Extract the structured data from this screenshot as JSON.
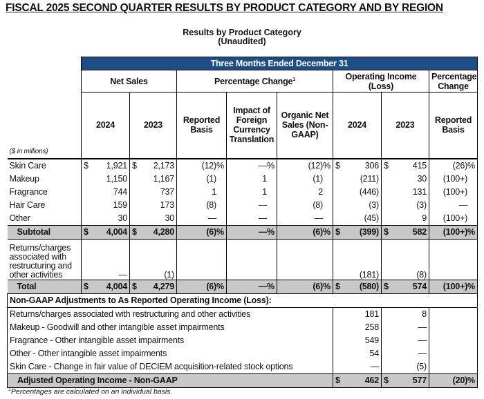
{
  "title": "FISCAL 2025 SECOND QUARTER RESULTS BY PRODUCT CATEGORY AND BY REGION",
  "subtitle": "Results by Product Category",
  "subtitle2": "(Unaudited)",
  "header": {
    "period": "Three Months Ended December 31",
    "net_sales": "Net Sales",
    "pct_change": "Percentage Change",
    "pct_change_sup": "1",
    "operating_income": "Operating Income (Loss)",
    "pct_change2": "Percentage Change",
    "cols": [
      "2024",
      "2023",
      "Reported Basis",
      "Impact of Foreign Currency Translation",
      "Organic Net Sales (Non-GAAP)",
      "2024",
      "2023",
      "Reported Basis"
    ],
    "units": "($ in millions)"
  },
  "symbols": {
    "dollar": "$",
    "percent": "%"
  },
  "colors": {
    "header_blue": "#1c4f86",
    "subtotal_gray": "#c8c8c8"
  },
  "rows": [
    {
      "label": "Skin Care",
      "type": "data",
      "dollar": true,
      "pct": [
        2,
        3,
        4,
        7
      ],
      "values": [
        "1,921",
        "2,173",
        "(12)",
        "—",
        "(12)",
        "306",
        "415",
        "(26)"
      ]
    },
    {
      "label": "Makeup",
      "type": "data",
      "dollar": false,
      "pct": [],
      "values": [
        "1,150",
        "1,167",
        "(1)",
        "1",
        "(1)",
        "(211)",
        "30",
        "(100+)"
      ]
    },
    {
      "label": "Fragrance",
      "type": "data",
      "dollar": false,
      "pct": [],
      "values": [
        "744",
        "737",
        "1",
        "1",
        "2",
        "(446)",
        "131",
        "(100+)"
      ]
    },
    {
      "label": "Hair Care",
      "type": "data",
      "dollar": false,
      "pct": [],
      "values": [
        "159",
        "173",
        "(8)",
        "—",
        "(8)",
        "(3)",
        "(3)",
        "—"
      ]
    },
    {
      "label": "Other",
      "type": "data",
      "dollar": false,
      "pct": [],
      "values": [
        "30",
        "30",
        "—",
        "—",
        "—",
        "(45)",
        "9",
        "(100+)"
      ]
    },
    {
      "label": "Subtotal",
      "type": "gray",
      "dollar": true,
      "pct": [
        2,
        3,
        4,
        7
      ],
      "values": [
        "4,004",
        "4,280",
        "(6)",
        "—",
        "(6)",
        "(399)",
        "582",
        "(100+)"
      ]
    },
    {
      "label": "Returns/charges associated with restructuring and other activities",
      "type": "multi",
      "dollar": false,
      "pct": [],
      "values": [
        "—",
        "(1)",
        "",
        "",
        "",
        "(181)",
        "(8)",
        ""
      ]
    },
    {
      "label": "Total",
      "type": "gray",
      "dollar": true,
      "pct": [
        2,
        3,
        4,
        7
      ],
      "values": [
        "4,004",
        "4,279",
        "(6)",
        "—",
        "(6)",
        "(580)",
        "574",
        "(100+)"
      ]
    }
  ],
  "non_gaap": {
    "heading": "Non-GAAP Adjustments to As Reported Operating Income (Loss):",
    "rows": [
      {
        "label": "Returns/charges associated with restructuring and other activities",
        "values": [
          "181",
          "8"
        ]
      },
      {
        "label": "Makeup - Goodwill and other intangible asset impairments",
        "values": [
          "258",
          "—"
        ]
      },
      {
        "label": "Fragrance - Other intangible asset impairments",
        "values": [
          "549",
          "—"
        ]
      },
      {
        "label": "Other - Other intangible asset impairments",
        "values": [
          "54",
          "—"
        ]
      },
      {
        "label": "Skin Care - Change in fair value of DECIEM acquisition-related stock options",
        "values": [
          "—",
          "(5)"
        ]
      }
    ],
    "adjusted": {
      "label": "Adjusted Operating Income - Non-GAAP",
      "values": [
        "462",
        "577",
        "(20)"
      ]
    }
  },
  "footnote_sup": "1",
  "footnote": "Percentages are calculated on an individual basis."
}
